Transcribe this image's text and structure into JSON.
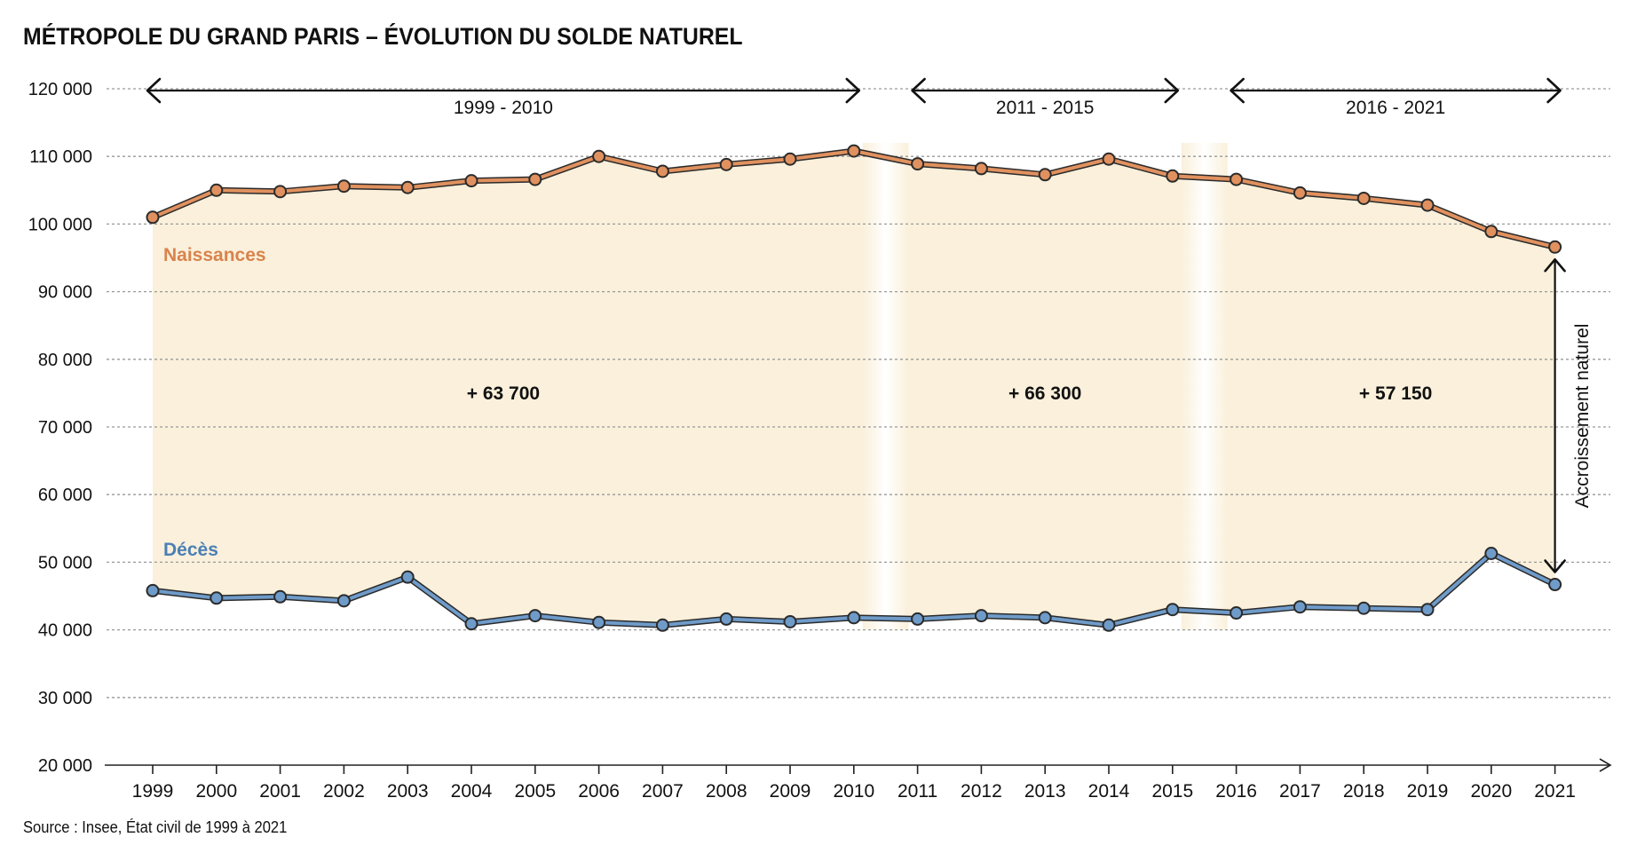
{
  "chart_data": {
    "type": "line",
    "title": "MÉTROPOLE DU GRAND PARIS – ÉVOLUTION DU SOLDE NATUREL",
    "source": "Source : Insee, État civil de 1999 à 2021",
    "x": [
      1999,
      2000,
      2001,
      2002,
      2003,
      2004,
      2005,
      2006,
      2007,
      2008,
      2009,
      2010,
      2011,
      2012,
      2013,
      2014,
      2015,
      2016,
      2017,
      2018,
      2019,
      2020,
      2021
    ],
    "ylim": [
      20000,
      120000
    ],
    "yticks": [
      20000,
      30000,
      40000,
      50000,
      60000,
      70000,
      80000,
      90000,
      100000,
      110000,
      120000
    ],
    "ytick_labels": [
      "20 000",
      "30 000",
      "40 000",
      "50 000",
      "60 000",
      "70 000",
      "80 000",
      "90 000",
      "100 000",
      "110 000",
      "120 000"
    ],
    "grid": true,
    "series": [
      {
        "name": "Naissances",
        "color": "#e0915f",
        "label_color": "#d9834c",
        "values": [
          101000,
          105000,
          104800,
          105600,
          105400,
          106400,
          106600,
          110000,
          107800,
          108800,
          109600,
          110800,
          108900,
          108200,
          107300,
          109600,
          107100,
          106600,
          104600,
          103800,
          102800,
          98900,
          96600
        ]
      },
      {
        "name": "Décès",
        "color": "#6f9bc9",
        "label_color": "#4c7fb5",
        "values": [
          45800,
          44700,
          44900,
          44300,
          47800,
          40900,
          42100,
          41100,
          40700,
          41600,
          41200,
          41800,
          41600,
          42100,
          41800,
          40700,
          43000,
          42500,
          43400,
          43200,
          43000,
          51300,
          46700
        ]
      }
    ],
    "periods": [
      {
        "label": "1999 - 2010",
        "start": 1999,
        "end": 2010,
        "value_label": "+ 63 700"
      },
      {
        "label": "2011 - 2015",
        "start": 2011,
        "end": 2015,
        "value_label": "+ 66 300"
      },
      {
        "label": "2016 - 2021",
        "start": 2016,
        "end": 2021,
        "value_label": "+ 57 150"
      }
    ],
    "annotation": {
      "label": "Accroissement naturel",
      "x": 2021
    },
    "colors": {
      "fill": "#faf0db",
      "grid": "#9a9a9a",
      "axis": "#222222",
      "line_outline": "#2b2b2b"
    }
  }
}
